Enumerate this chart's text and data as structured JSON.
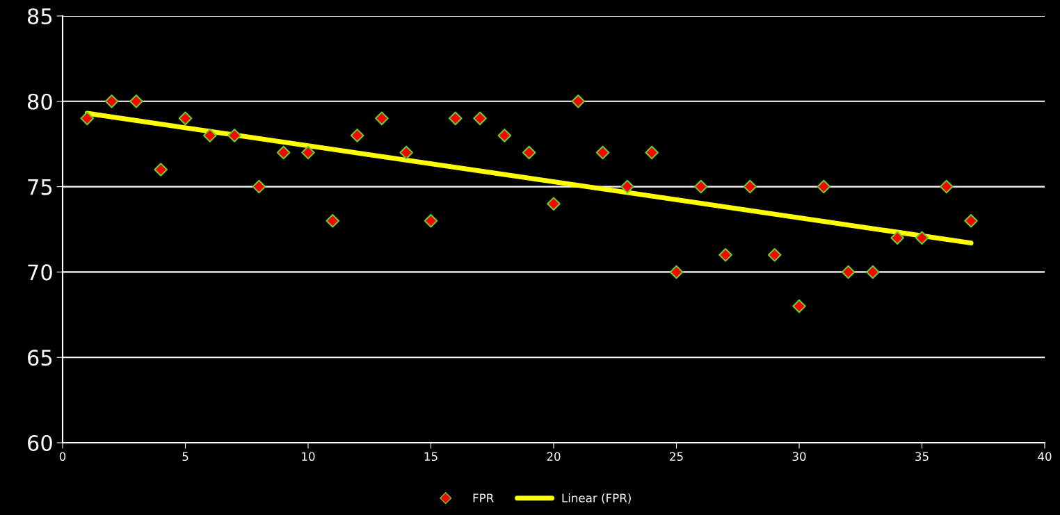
{
  "chart_data": {
    "type": "scatter",
    "x": [
      1,
      2,
      3,
      4,
      5,
      6,
      7,
      8,
      9,
      10,
      11,
      12,
      13,
      14,
      15,
      16,
      17,
      18,
      19,
      20,
      21,
      22,
      23,
      24,
      25,
      26,
      27,
      28,
      29,
      30,
      31,
      32,
      33,
      34,
      35,
      36,
      37
    ],
    "series": [
      {
        "name": "FPR",
        "color": "#ff0000",
        "marker": "diamond",
        "values": [
          79,
          80,
          80,
          76,
          79,
          78,
          78,
          75,
          77,
          77,
          73,
          78,
          79,
          77,
          73,
          79,
          79,
          78,
          77,
          74,
          80,
          77,
          75,
          77,
          70,
          75,
          71,
          75,
          71,
          68,
          75,
          70,
          70,
          72,
          72,
          75,
          73
        ]
      },
      {
        "name": "Linear (FPR)",
        "type": "line",
        "color": "#ffff00",
        "marker": "none",
        "line_style": "solid",
        "x": [
          1,
          37
        ],
        "values": [
          79.3,
          71.7
        ]
      }
    ],
    "xlim": [
      0,
      40
    ],
    "xticks": [
      0,
      5,
      10,
      15,
      20,
      25,
      30,
      35,
      40
    ],
    "ylim": [
      60,
      85
    ],
    "yticks": [
      60,
      65,
      70,
      75,
      80,
      85
    ],
    "grid": "y",
    "legend": "bottom"
  }
}
